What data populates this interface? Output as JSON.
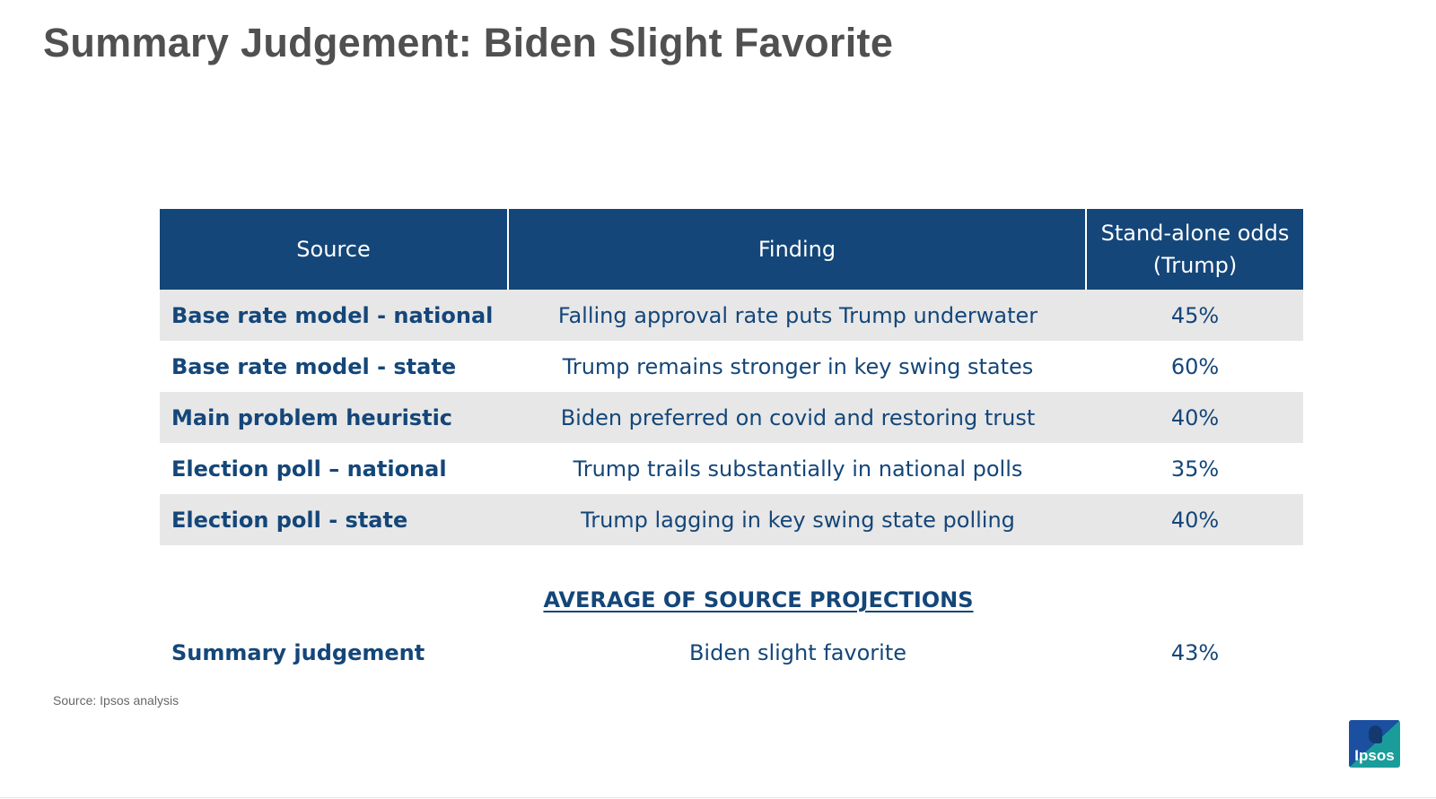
{
  "slide": {
    "title": "Summary Judgement: Biden Slight Favorite"
  },
  "table": {
    "headers": {
      "source": "Source",
      "finding": "Finding",
      "odds": "Stand-alone odds\n(Trump)"
    },
    "rows": [
      {
        "source": "Base rate model - national",
        "finding": "Falling approval rate puts Trump underwater",
        "odds": "45%"
      },
      {
        "source": "Base rate model - state",
        "finding": "Trump remains stronger in key swing states",
        "odds": "60%"
      },
      {
        "source": "Main problem heuristic",
        "finding": "Biden preferred on covid and restoring trust",
        "odds": "40%"
      },
      {
        "source": "Election poll – national",
        "finding": "Trump trails substantially in national polls",
        "odds": "35%"
      },
      {
        "source": "Election poll - state",
        "finding": "Trump lagging in key swing state polling",
        "odds": "40%"
      }
    ],
    "average_label": "AVERAGE OF SOURCE PROJECTIONS",
    "summary": {
      "source": "Summary judgement",
      "finding": "Biden slight favorite",
      "odds": "43%"
    }
  },
  "footer": {
    "source_note": "Source: Ipsos analysis",
    "logo_text": "Ipsos"
  },
  "colors": {
    "header_bg": "#144679",
    "text_blue": "#144679",
    "row_shade": "#e7e7e7",
    "title_gray": "#505050"
  }
}
